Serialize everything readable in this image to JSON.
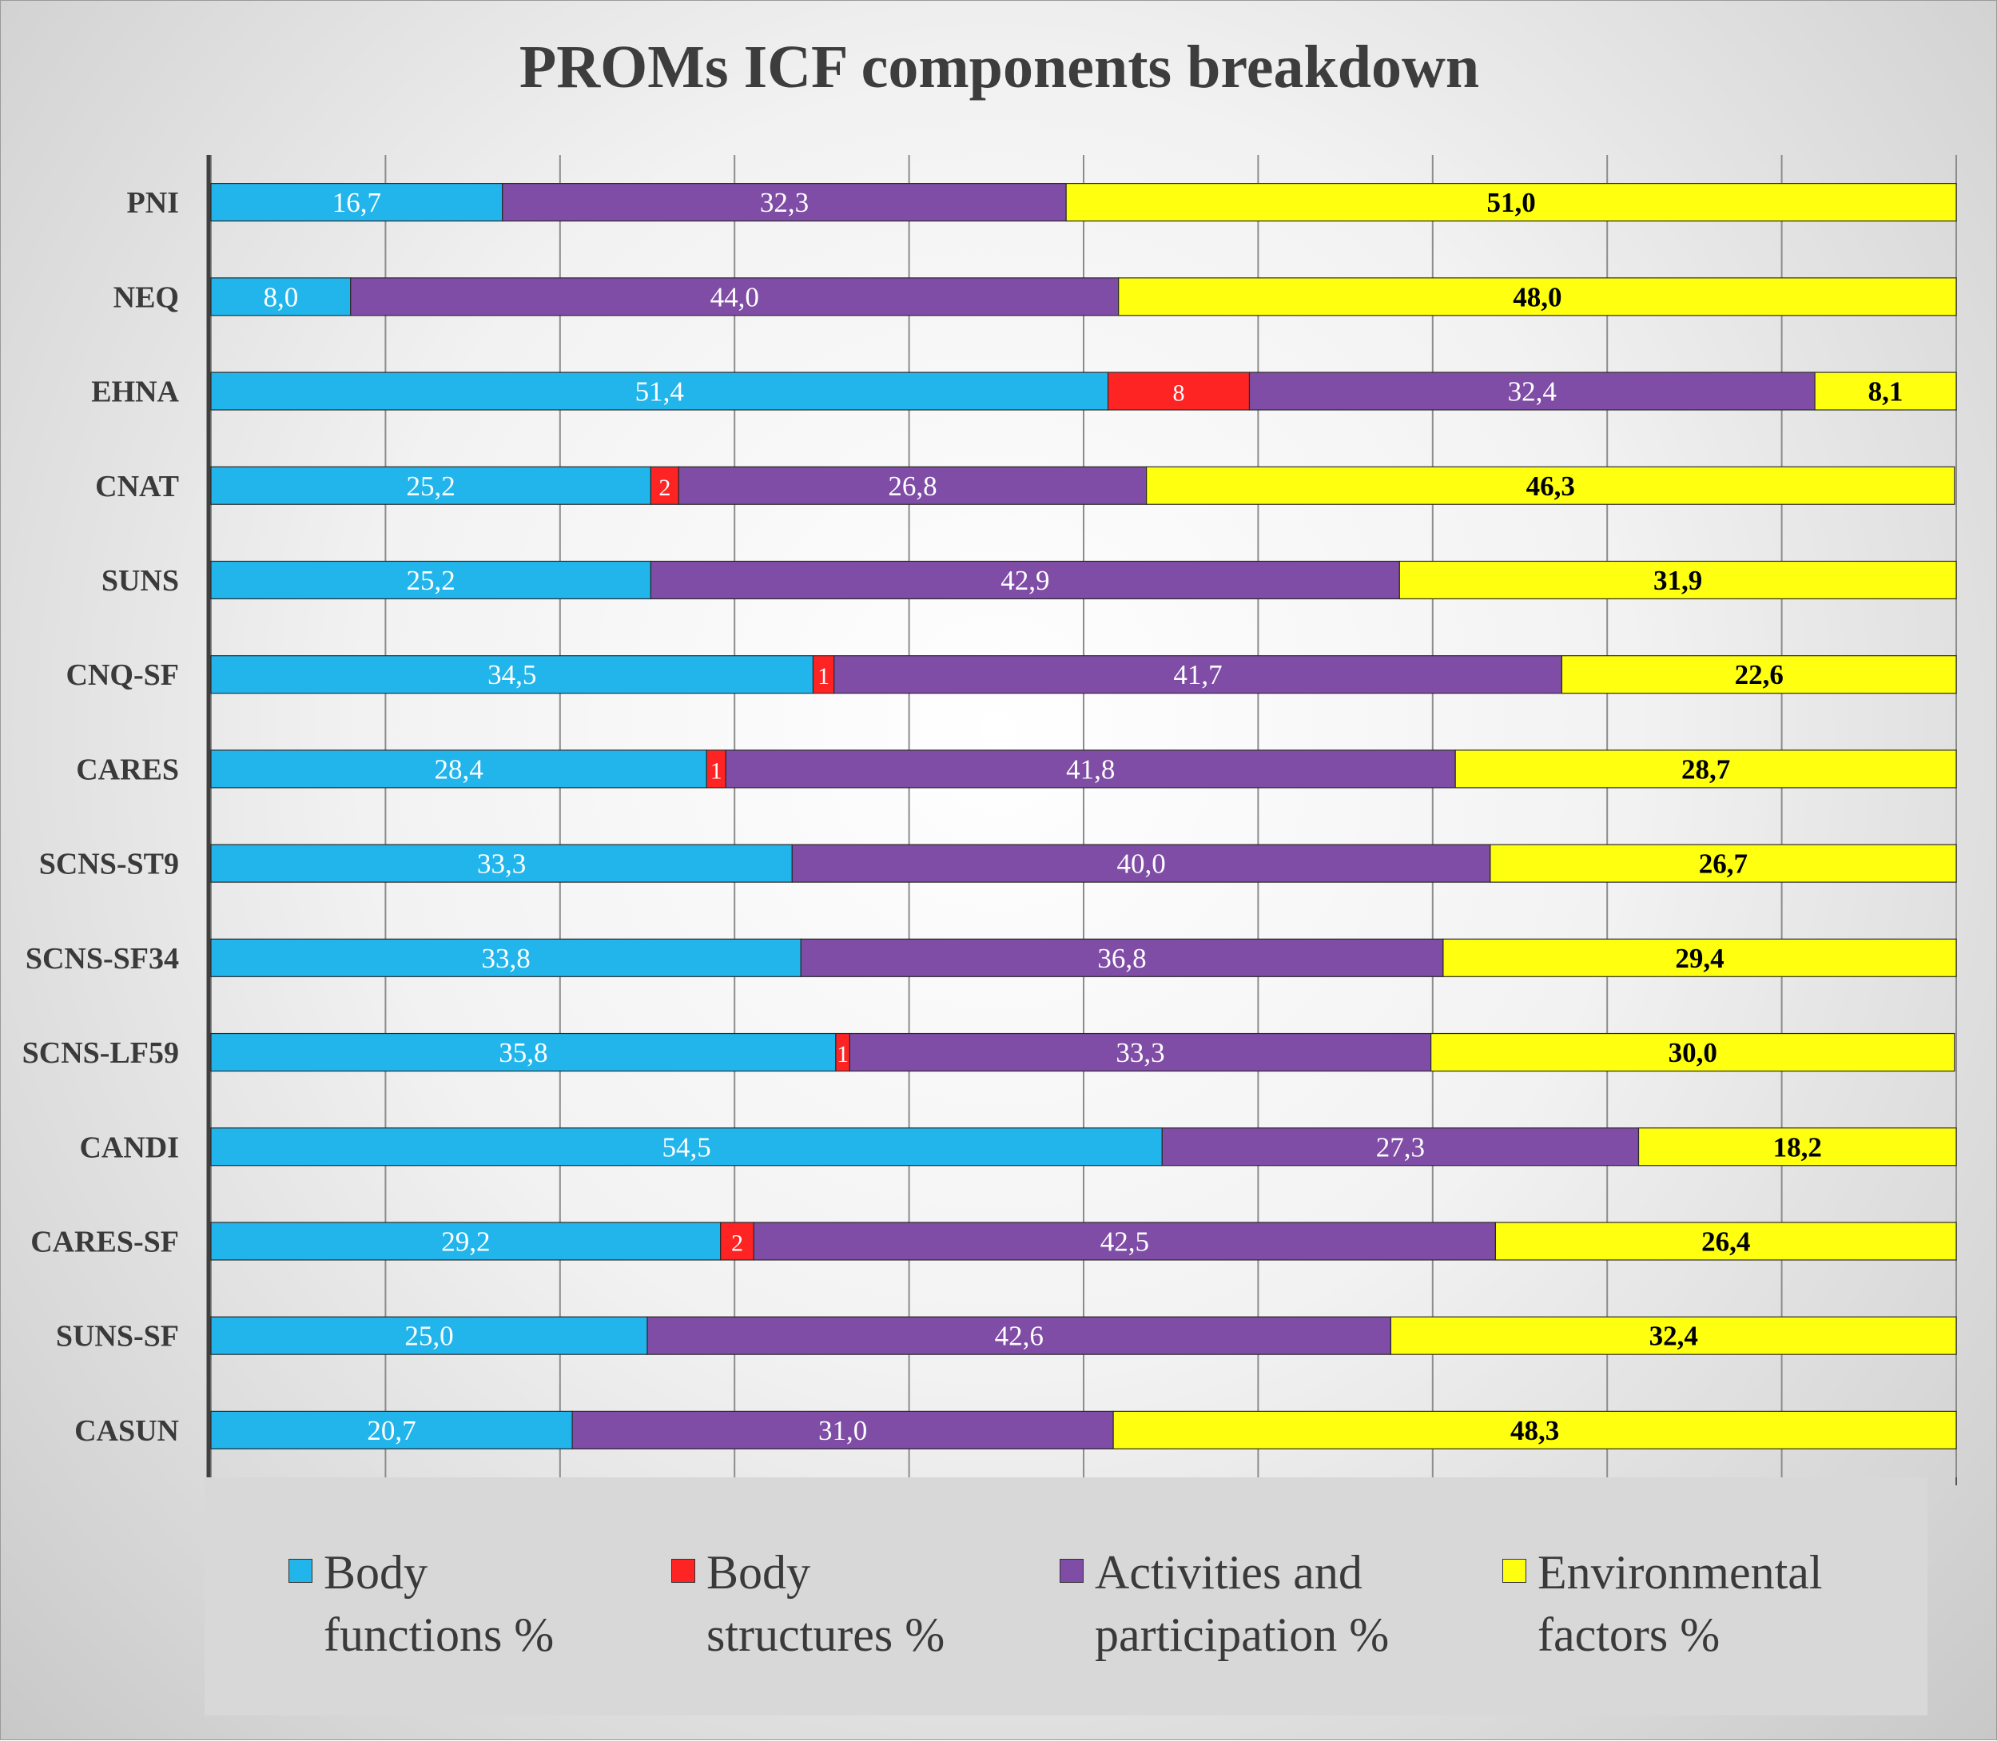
{
  "chart_data": {
    "type": "bar",
    "orientation": "horizontal",
    "stacked": "percent",
    "title": "PROMs ICF components breakdown",
    "categories": [
      "PNI",
      "NEQ",
      "EHNA",
      "CNAT",
      "SUNS",
      "CNQ-SF",
      "CARES",
      "SCNS-ST9",
      "SCNS-SF34",
      "SCNS-LF59",
      "CANDI",
      "CARES-SF",
      "SUNS-SF",
      "CASUN"
    ],
    "series": [
      {
        "name": "Body functions  %",
        "color": "#22b5ec",
        "values": [
          16.7,
          8.0,
          51.4,
          25.2,
          25.2,
          34.5,
          28.4,
          33.3,
          33.8,
          35.8,
          54.5,
          29.2,
          25.0,
          20.7
        ],
        "labels": [
          "16,7",
          "8,0",
          "51,4",
          "25,2",
          "25,2",
          "34,5",
          "28,4",
          "33,3",
          "33,8",
          "35,8",
          "54,5",
          "29,2",
          "25,0",
          "20,7"
        ]
      },
      {
        "name": "Body structures  %",
        "color": "#ff2424",
        "values": [
          0,
          0,
          8.1,
          1.6,
          0,
          1.2,
          1.1,
          0,
          0,
          0.8,
          0,
          1.9,
          0,
          0
        ],
        "labels": [
          "",
          "",
          "8",
          "2",
          "",
          "1",
          "1",
          "",
          "",
          "1",
          "",
          "2",
          "",
          ""
        ]
      },
      {
        "name": "Activities and participation %",
        "color": "#7f4ca6",
        "values": [
          32.3,
          44.0,
          32.4,
          26.8,
          42.9,
          41.7,
          41.8,
          40.0,
          36.8,
          33.3,
          27.3,
          42.5,
          42.6,
          31.0
        ],
        "labels": [
          "32,3",
          "44,0",
          "32,4",
          "26,8",
          "42,9",
          "41,7",
          "41,8",
          "40,0",
          "36,8",
          "33,3",
          "27,3",
          "42,5",
          "42,6",
          "31,0"
        ]
      },
      {
        "name": "Environmental factors %",
        "color": "#ffff10",
        "values": [
          51.0,
          48.0,
          8.1,
          46.3,
          31.9,
          22.6,
          28.7,
          26.7,
          29.4,
          30.0,
          18.2,
          26.4,
          32.4,
          48.3
        ],
        "labels": [
          "51,0",
          "48,0",
          "8,1",
          "46,3",
          "31,9",
          "22,6",
          "28,7",
          "26,7",
          "29,4",
          "30,0",
          "18,2",
          "26,4",
          "32,4",
          "48,3"
        ]
      }
    ],
    "xlim": [
      0,
      100
    ],
    "grid": true,
    "legend_position": "bottom",
    "label_colors": [
      "#ffffff",
      "#ffffff",
      "#ffffff",
      "#000000"
    ]
  }
}
